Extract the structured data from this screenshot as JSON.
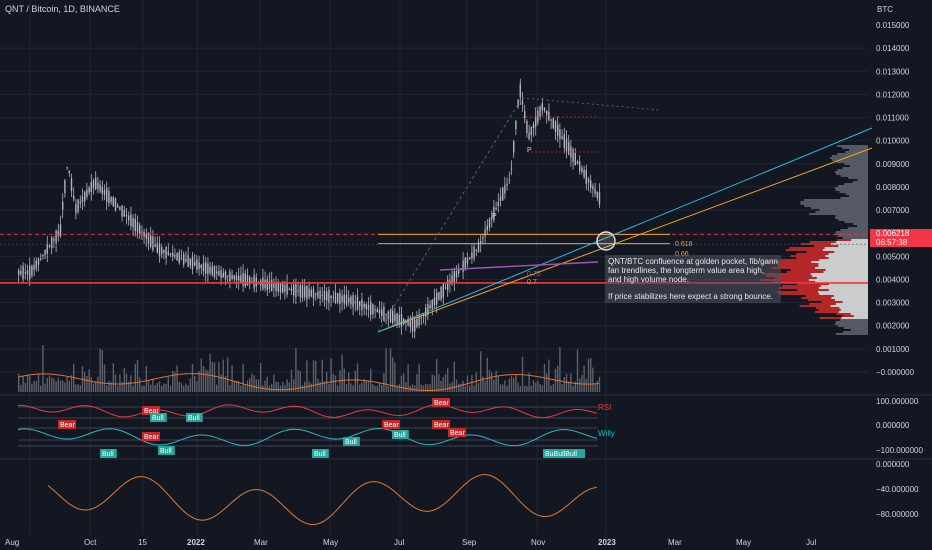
{
  "symbol_title": "QNT / Bitcoin, 1D, BINANCE",
  "currency_label": "BTC",
  "colors": {
    "background": "#131722",
    "candle": "#b2b5be",
    "volume": "#5d606b",
    "support": "#f23645",
    "fib_orange": "#f7a21b",
    "fib_blue": "#2fb5e0",
    "vol_ma": "#e0732e",
    "rsi": "#e04040",
    "willy": "#28b5c4",
    "osc": "#e07a2e",
    "label_bear": "#c62828",
    "label_bull": "#26a69a"
  },
  "price_axis": {
    "ticks": [
      "0.015000",
      "0.014000",
      "0.013000",
      "0.012000",
      "0.011000",
      "0.010000",
      "0.009000",
      "0.008000",
      "0.007000",
      "0.005000",
      "0.004000",
      "0.003000",
      "0.002000",
      "0.001000",
      "−0.000000"
    ],
    "current_price": "0.006218",
    "countdown": "06:57:38"
  },
  "rsi_axis": {
    "ticks": [
      "100.000000",
      "0.000000",
      "−100.000000"
    ]
  },
  "osc_axis": {
    "ticks": [
      "0.000000",
      "−40.000000",
      "−80.000000"
    ]
  },
  "time_axis": [
    "Aug",
    "Oct",
    "15",
    "2022",
    "Mar",
    "May",
    "Jul",
    "Sep",
    "Nov",
    "2023",
    "Mar",
    "May",
    "Jul"
  ],
  "annotation": {
    "line1": "QNT/BTC confluence at golden pocket, fib/gann fan trendlines, the longterm value area high, and high volume node.",
    "line2": "If price stabilizes here expect a strong bounce."
  },
  "fib_labels": [
    "0.618",
    "0.66",
    "0.75",
    "0.7"
  ],
  "pivot_labels": [
    "P",
    "P"
  ],
  "indicator_labels": {
    "rsi": "RSI",
    "willy": "Willy",
    "bear_labels": [
      "Bear",
      "Bear",
      "Bear",
      "Bear",
      "Bear",
      "Bear",
      "Bear"
    ],
    "bull_labels": [
      "Bull",
      "Bull",
      "Bull",
      "Bull",
      "Bull",
      "Bull",
      "BuBullBull",
      "Bull"
    ]
  },
  "chart_data": {
    "type": "line",
    "title": "",
    "xlabel": "",
    "ylabel": "BTC",
    "ylim": [
      -0.0005,
      0.0155
    ],
    "x": [
      "Aug",
      "Oct",
      "15",
      "2022",
      "Mar",
      "May",
      "Jul",
      "Sep",
      "Nov",
      "2023"
    ],
    "series": [
      {
        "values": [
          0.0043,
          0.0082,
          0.0053,
          0.0042,
          0.0036,
          0.0031,
          0.002,
          0.0054,
          0.0115,
          0.007
        ]
      }
    ],
    "horizontal_levels": [
      {
        "value": 0.00385
      },
      {
        "value": 0.00595
      },
      {
        "value": 0.0057
      }
    ],
    "current_price": 0.006218
  }
}
